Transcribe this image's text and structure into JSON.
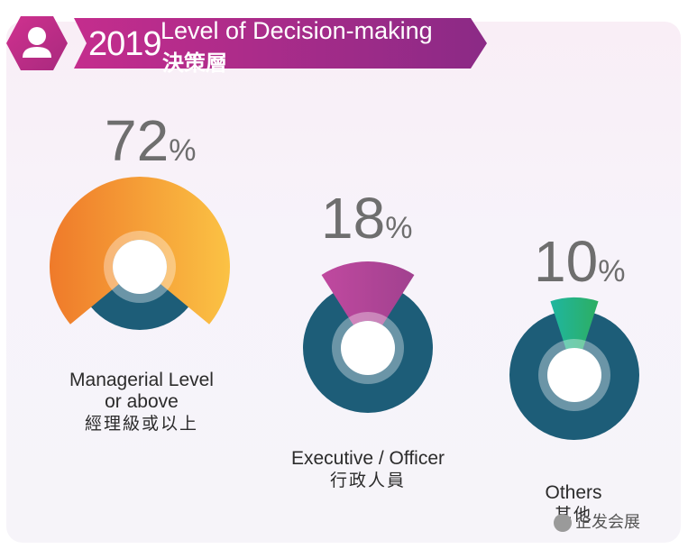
{
  "header": {
    "year": "2019",
    "title_en": "Level of Decision-making",
    "title_zh": "決策層",
    "icon": "user-icon"
  },
  "chart_data": {
    "type": "pie",
    "categories": [
      "Managerial Level or above",
      "Executive / Officer",
      "Others"
    ],
    "values": [
      72,
      18,
      10
    ],
    "unit": "%",
    "value_labels": [
      "72",
      "18",
      "10"
    ],
    "percent_symbol": "%",
    "labels_en": [
      [
        "Managerial Level",
        "or above"
      ],
      [
        "Executive / Officer"
      ],
      [
        "Others"
      ]
    ],
    "labels_zh": [
      "經理級或以上",
      "行政人員",
      "其他"
    ],
    "colors": [
      "#f5a437",
      "#b5479a",
      "#27b07a"
    ],
    "base_color": "#1d5d78"
  },
  "watermark": {
    "text": "企发会展"
  }
}
